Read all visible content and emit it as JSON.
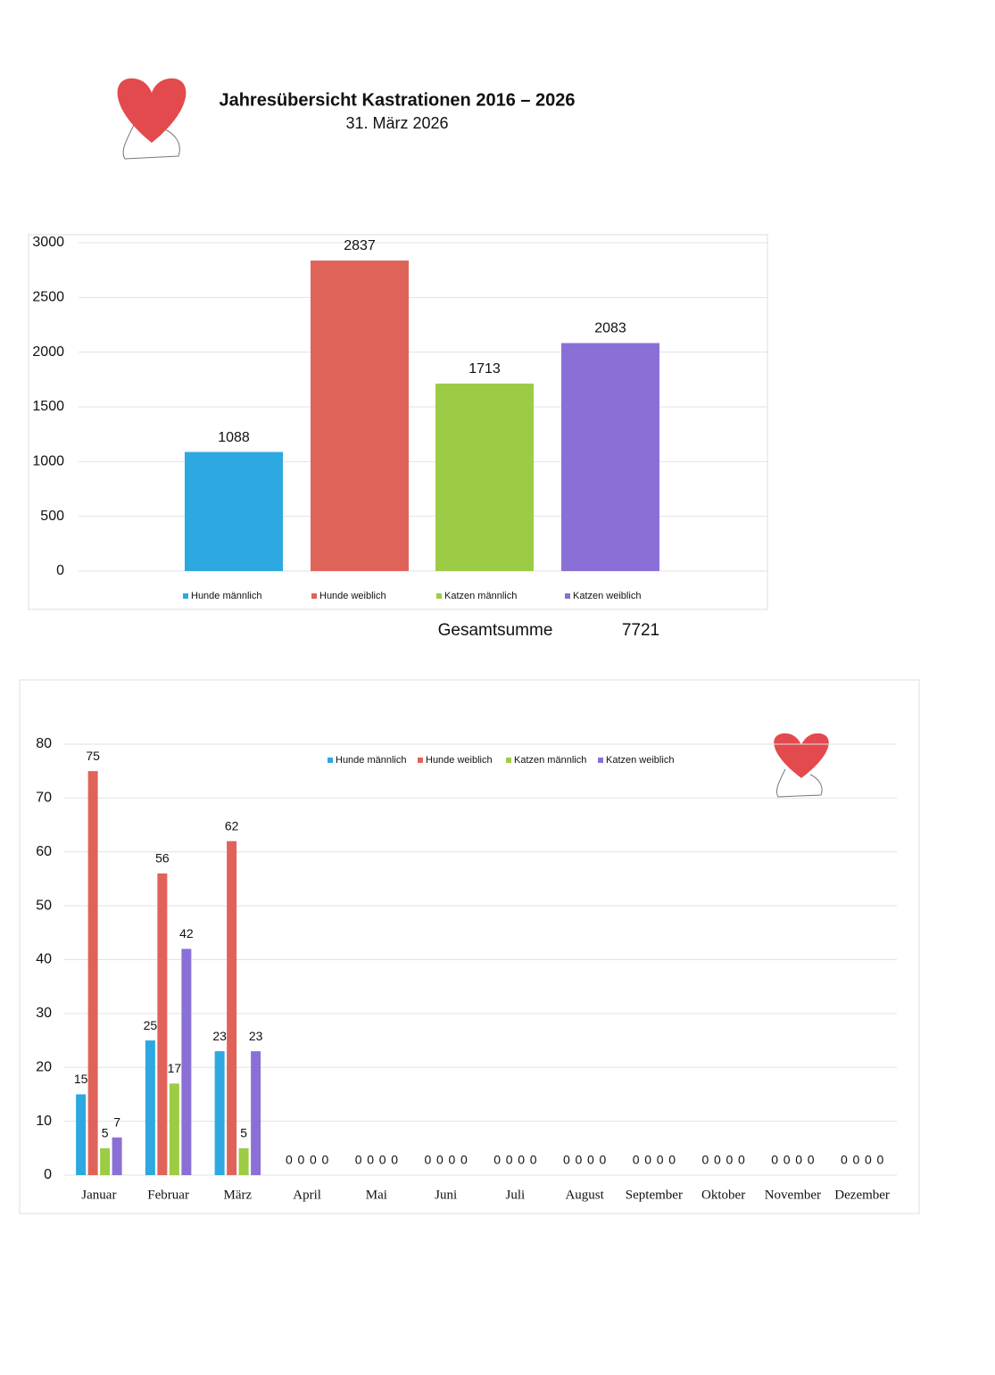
{
  "header": {
    "title": "Jahresübersicht Kastrationen 2016 – 2026",
    "date": "31. März 2026"
  },
  "summary": {
    "label": "Gesamtsumme",
    "value": 7721
  },
  "chart_data": [
    {
      "type": "bar",
      "series": [
        {
          "name": "Hunde männlich",
          "color": "#2ea8e0",
          "values": [
            1088
          ]
        },
        {
          "name": "Hunde weiblich",
          "color": "#e0635a",
          "values": [
            2837
          ]
        },
        {
          "name": "Katzen männlich",
          "color": "#9ccc45",
          "values": [
            1713
          ]
        },
        {
          "name": "Katzen weiblich",
          "color": "#8a70d6",
          "values": [
            2083
          ]
        }
      ],
      "ylim": [
        0,
        3000
      ],
      "yticks": [
        0,
        500,
        1000,
        1500,
        2000,
        2500,
        3000
      ],
      "grid": true,
      "legend": "bottom"
    },
    {
      "type": "bar",
      "categories": [
        "Januar",
        "Februar",
        "März",
        "April",
        "Mai",
        "Juni",
        "Juli",
        "August",
        "September",
        "Oktober",
        "November",
        "Dezember"
      ],
      "series": [
        {
          "name": "Hunde männlich",
          "color": "#2ea8e0",
          "values": [
            15,
            25,
            23,
            0,
            0,
            0,
            0,
            0,
            0,
            0,
            0,
            0
          ]
        },
        {
          "name": "Hunde weiblich",
          "color": "#e0635a",
          "values": [
            75,
            56,
            62,
            0,
            0,
            0,
            0,
            0,
            0,
            0,
            0,
            0
          ]
        },
        {
          "name": "Katzen männlich",
          "color": "#9ccc45",
          "values": [
            5,
            17,
            5,
            0,
            0,
            0,
            0,
            0,
            0,
            0,
            0,
            0
          ]
        },
        {
          "name": "Katzen weiblich",
          "color": "#8a70d6",
          "values": [
            7,
            42,
            23,
            0,
            0,
            0,
            0,
            0,
            0,
            0,
            0,
            0
          ]
        }
      ],
      "ylim": [
        0,
        80
      ],
      "yticks": [
        0,
        10,
        20,
        30,
        40,
        50,
        60,
        70,
        80
      ],
      "grid": true,
      "legend": "top"
    }
  ]
}
